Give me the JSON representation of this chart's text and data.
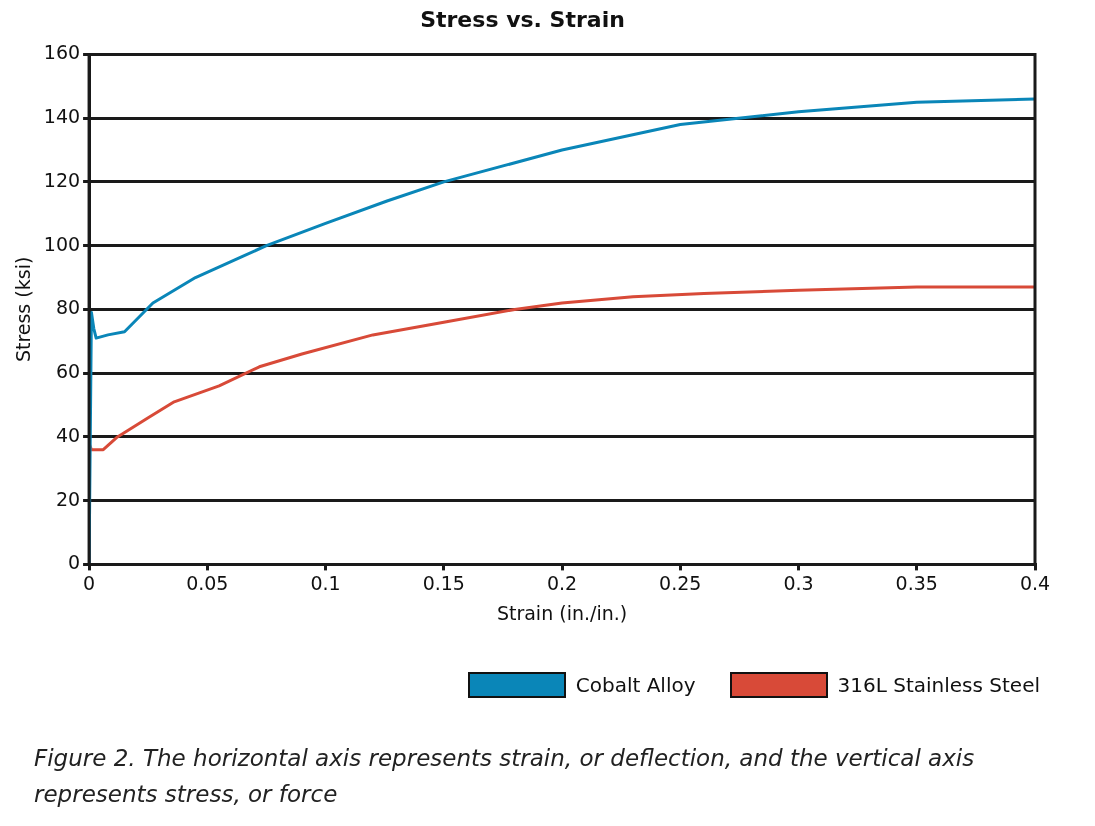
{
  "chart_data": {
    "type": "line",
    "title": "Stress vs. Strain",
    "xlabel": "Strain (in./in.)",
    "ylabel": "Stress (ksi)",
    "xlim": [
      0,
      0.4
    ],
    "xticks": [
      0,
      0.05,
      0.1,
      0.15,
      0.2,
      0.25,
      0.3,
      0.35,
      0.4
    ],
    "ylim": [
      0,
      160
    ],
    "yticks": [
      0,
      20,
      40,
      60,
      80,
      100,
      120,
      140,
      160
    ],
    "grid": "y",
    "legend": "bottom right",
    "marker": "none",
    "line_style": "solid",
    "series": [
      {
        "name": "Cobalt Alloy",
        "color": "#0a86b8",
        "x": [
          0,
          0.001,
          0.002,
          0.003,
          0.008,
          0.015,
          0.027,
          0.045,
          0.075,
          0.1,
          0.126,
          0.15,
          0.2,
          0.25,
          0.3,
          0.35,
          0.4
        ],
        "values": [
          0,
          79,
          74,
          71,
          72,
          73,
          82,
          90,
          100,
          107,
          114,
          120,
          130,
          138,
          142,
          145,
          146
        ]
      },
      {
        "name": "316L Stainless Steel",
        "color": "#d84a38",
        "x": [
          0,
          0,
          0.001,
          0.006,
          0.012,
          0.025,
          0.036,
          0.055,
          0.072,
          0.09,
          0.12,
          0.15,
          0.18,
          0.2,
          0.23,
          0.26,
          0.3,
          0.35,
          0.4
        ],
        "values": [
          0,
          38,
          36,
          36,
          40,
          46,
          51,
          56,
          62,
          66,
          72,
          76,
          80,
          82,
          84,
          85,
          86,
          87,
          87
        ]
      }
    ],
    "annotations": [
      "Figure 2. The horizontal axis represents strain, or deflection, and the vertical axis represents stress, or force"
    ]
  }
}
